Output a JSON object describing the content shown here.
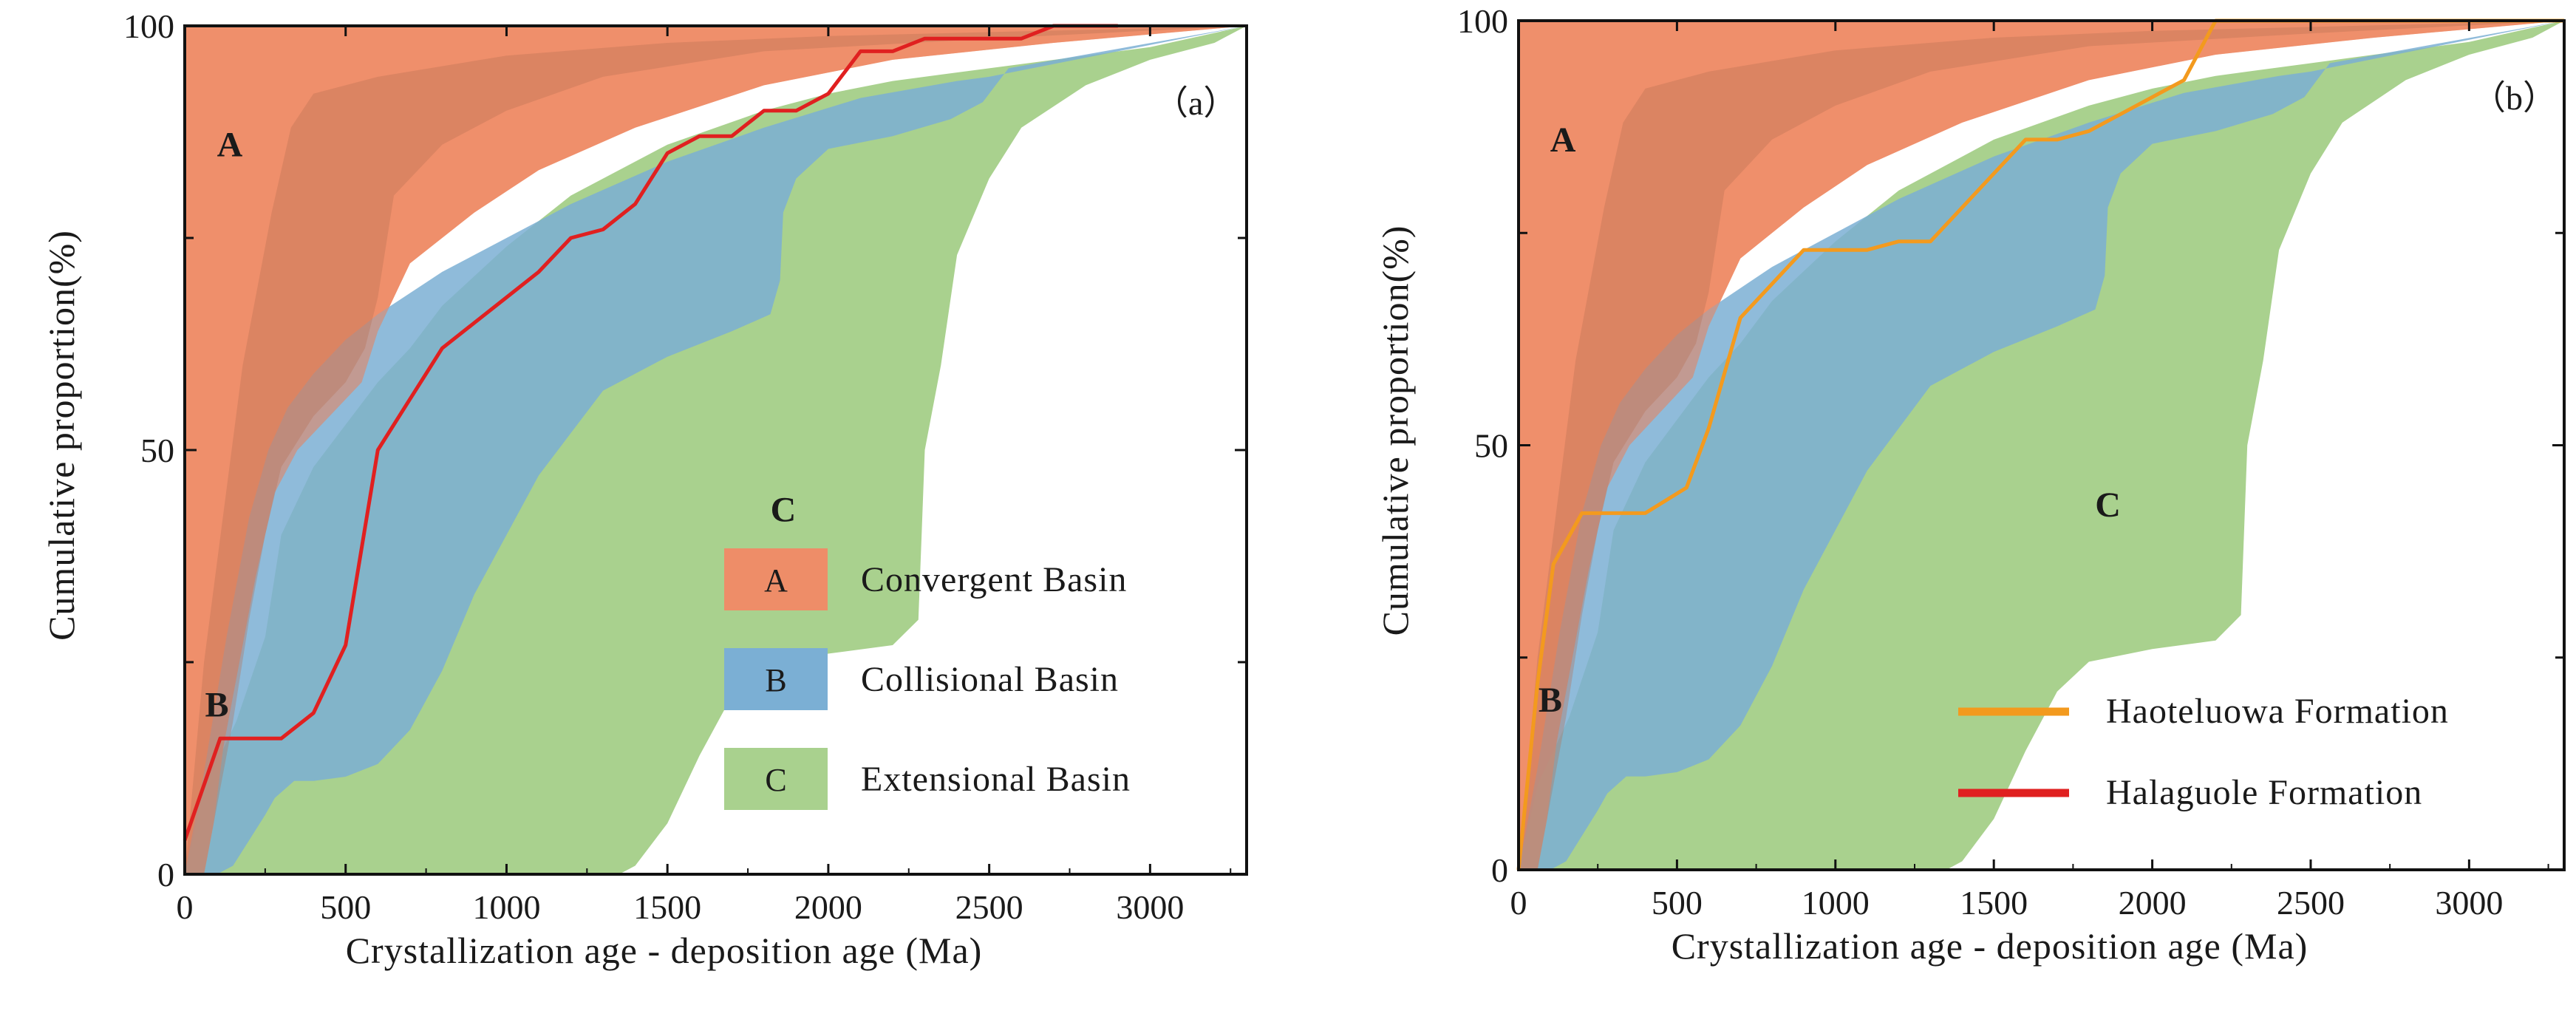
{
  "chart_data": [
    {
      "type": "area",
      "panel_label": "（a）",
      "xlabel": "Crystallization age - deposition age (Ma)",
      "ylabel": "Cumulative proportion(%)",
      "xlim": [
        0,
        3300
      ],
      "ylim": [
        0,
        100
      ],
      "xticks": [
        0,
        500,
        1000,
        1500,
        2000,
        2500,
        3000
      ],
      "xtick_labels": [
        "0",
        "500",
        "1000",
        "1500",
        "2000",
        "2500",
        "3000"
      ],
      "yticks": [
        0,
        50,
        100
      ],
      "ytick_labels": [
        "0",
        "50",
        "100"
      ],
      "region_labels": [
        "A",
        "B",
        "C"
      ],
      "legend": {
        "placement": "lower-right",
        "entries": [
          {
            "swatch_text": "A",
            "label": "Convergent Basin",
            "color": "#EE8D68"
          },
          {
            "swatch_text": "B",
            "label": "Collisional Basin",
            "color": "#7BAFD4"
          },
          {
            "swatch_text": "C",
            "label": "Extensional Basin",
            "color": "#A9D18E"
          }
        ]
      },
      "series": [
        {
          "name": "Halaguole Formation",
          "color": "#E02020",
          "x": [
            0,
            110,
            300,
            400,
            500,
            600,
            700,
            800,
            900,
            1000,
            1100,
            1200,
            1300,
            1400,
            1500,
            1600,
            1700,
            1800,
            1900,
            2000,
            2100,
            2200,
            2300,
            2400,
            2500,
            2600,
            2700,
            2800,
            2900
          ],
          "y": [
            4,
            16,
            16,
            19,
            27,
            50,
            56,
            62,
            65,
            68,
            71,
            75,
            76,
            79,
            85,
            87,
            87,
            90,
            90,
            92,
            97,
            97,
            98.5,
            98.5,
            98.5,
            98.5,
            100,
            100,
            100
          ]
        }
      ]
    },
    {
      "type": "area",
      "panel_label": "（b）",
      "xlabel": "Crystallization age - deposition age (Ma)",
      "ylabel": "Cumulative proportion(%)",
      "xlim": [
        0,
        3300
      ],
      "ylim": [
        0,
        100
      ],
      "xticks": [
        0,
        500,
        1000,
        1500,
        2000,
        2500,
        3000
      ],
      "xtick_labels": [
        "0",
        "500",
        "1000",
        "1500",
        "2000",
        "2500",
        "3000"
      ],
      "yticks": [
        0,
        50,
        100
      ],
      "ytick_labels": [
        "0",
        "50",
        "100"
      ],
      "region_labels": [
        "A",
        "B",
        "C"
      ],
      "legend": {
        "placement": "lower-right",
        "entries": [
          {
            "label": "Haoteluowa Formation",
            "color": "#F39A1E"
          },
          {
            "label": "Halaguole Formation",
            "color": "#E02020"
          }
        ]
      },
      "series": [
        {
          "name": "Haoteluowa Formation",
          "color": "#F39A1E",
          "x": [
            0,
            60,
            110,
            200,
            400,
            530,
            600,
            700,
            800,
            900,
            1000,
            1100,
            1200,
            1300,
            1400,
            1500,
            1600,
            1700,
            1800,
            1900,
            2000,
            2100,
            2200,
            2300,
            2400,
            2600,
            3000,
            3300
          ],
          "y": [
            0,
            22,
            36,
            42,
            42,
            45,
            52,
            65,
            69,
            73,
            73,
            73,
            74,
            74,
            78,
            82,
            86,
            86,
            87,
            89,
            91,
            93,
            100,
            100,
            100,
            100,
            100,
            100
          ]
        }
      ]
    }
  ]
}
